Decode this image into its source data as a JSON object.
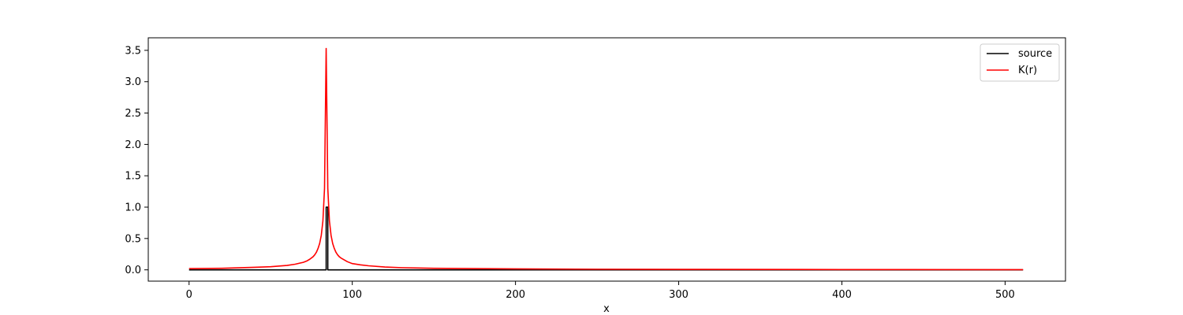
{
  "chart_data": {
    "type": "line",
    "title": "",
    "xlabel": "x",
    "ylabel": "",
    "xlim": [
      -25,
      537
    ],
    "ylim": [
      -0.18,
      3.7
    ],
    "xticks": [
      0,
      100,
      200,
      300,
      400,
      500
    ],
    "yticks": [
      0.0,
      0.5,
      1.0,
      1.5,
      2.0,
      2.5,
      3.0,
      3.5
    ],
    "xtick_labels": [
      "0",
      "100",
      "200",
      "300",
      "400",
      "500"
    ],
    "ytick_labels": [
      "0.0",
      "0.5",
      "1.0",
      "1.5",
      "2.0",
      "2.5",
      "3.0",
      "3.5"
    ],
    "grid": false,
    "legend_position": "top-right",
    "series": [
      {
        "name": "source",
        "color": "#000000",
        "x": [
          0,
          84,
          84,
          85,
          85,
          511
        ],
        "y": [
          0,
          0,
          1.0,
          1.0,
          0,
          0
        ]
      },
      {
        "name": "K(r)",
        "color": "#ff0000",
        "x": [
          0,
          20,
          40,
          50,
          60,
          65,
          70,
          72,
          74,
          76,
          77,
          78,
          79,
          80,
          81,
          82,
          83,
          84,
          85,
          86,
          87,
          88,
          89,
          90,
          91,
          92,
          93,
          95,
          97,
          100,
          105,
          110,
          120,
          130,
          150,
          200,
          250,
          300,
          400,
          511
        ],
        "y": [
          0.02,
          0.025,
          0.04,
          0.05,
          0.07,
          0.09,
          0.12,
          0.14,
          0.17,
          0.21,
          0.24,
          0.28,
          0.34,
          0.42,
          0.55,
          0.78,
          1.3,
          3.53,
          1.3,
          0.78,
          0.55,
          0.42,
          0.34,
          0.28,
          0.24,
          0.21,
          0.19,
          0.16,
          0.13,
          0.1,
          0.08,
          0.065,
          0.045,
          0.035,
          0.025,
          0.015,
          0.01,
          0.008,
          0.005,
          0.003
        ]
      }
    ]
  }
}
